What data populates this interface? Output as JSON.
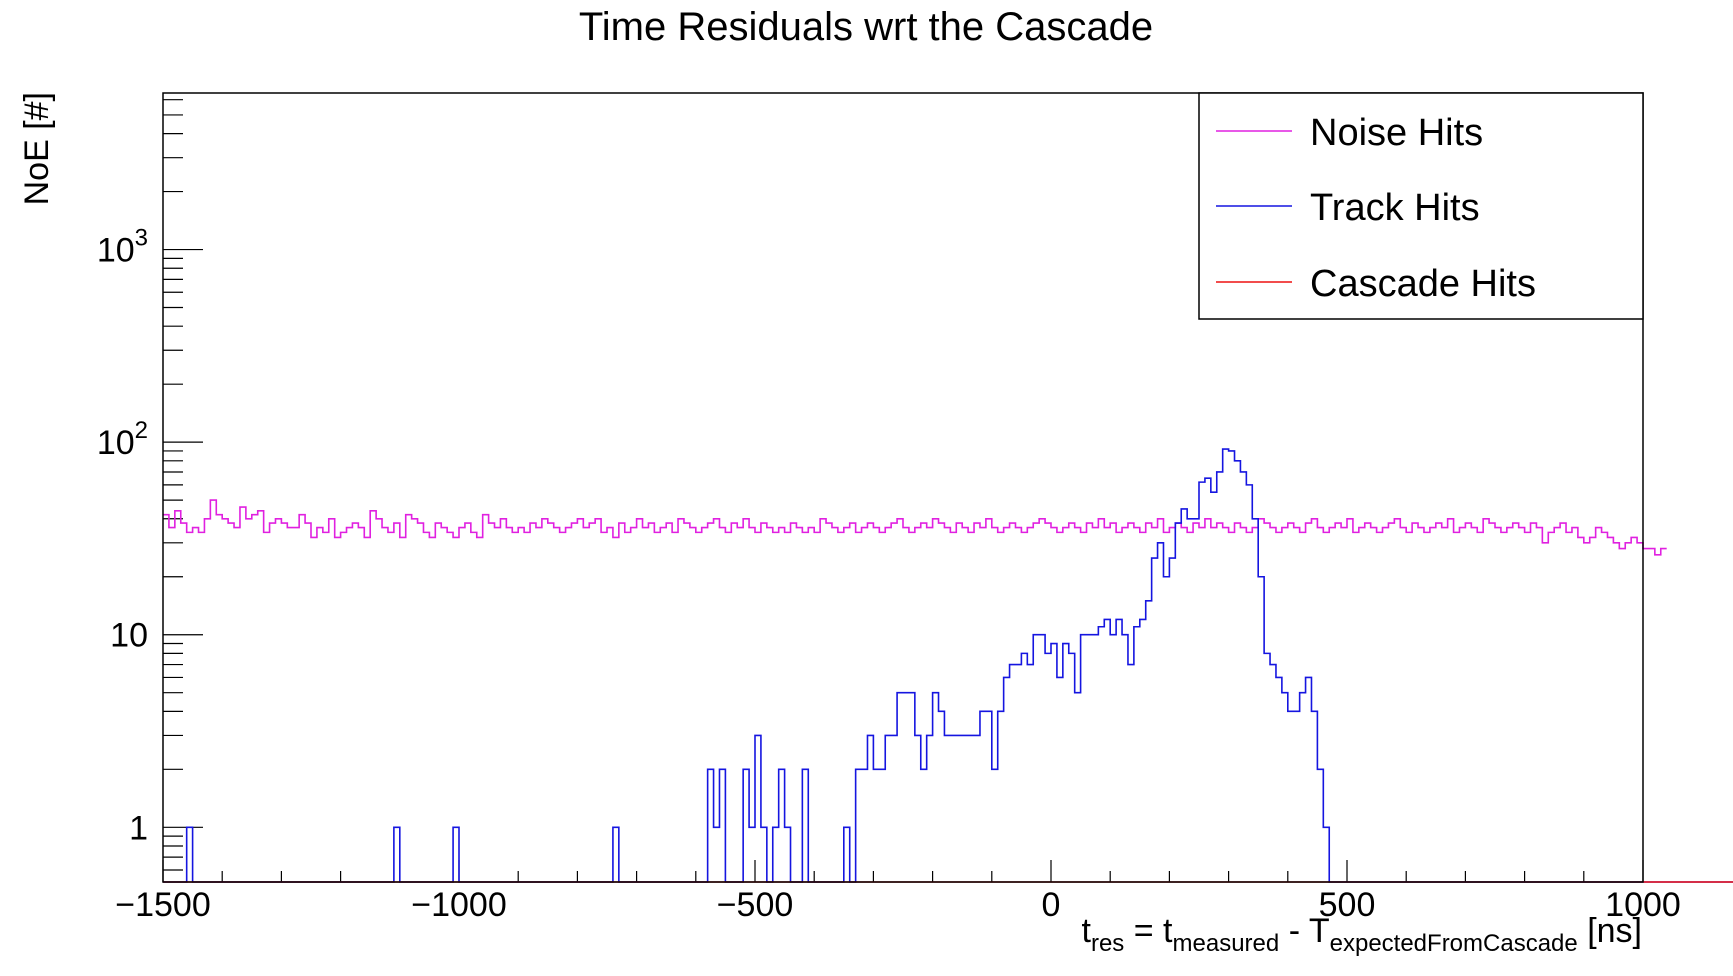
{
  "chart_data": {
    "type": "step-histogram",
    "title": "Time Residuals wrt the Cascade",
    "ylabel": "NoE [#]",
    "xlabel_parts": {
      "t": "t",
      "t_sub": "res",
      "eq": " = t",
      "eq_sub": "measured",
      "minus": " - T",
      "minus_sub": "expectedFromCascade",
      "unit": " [ns]"
    },
    "xlim": [
      -1500,
      1000
    ],
    "ylim": [
      0.52,
      6500
    ],
    "yscale": "log",
    "bin_width": 10,
    "x_ticks": [
      {
        "value": -1500,
        "label": "−1500"
      },
      {
        "value": -1000,
        "label": "−1000"
      },
      {
        "value": -500,
        "label": "−500"
      },
      {
        "value": 0,
        "label": "0"
      },
      {
        "value": 500,
        "label": "500"
      },
      {
        "value": 1000,
        "label": "1000"
      }
    ],
    "y_ticks": [
      {
        "value": 1,
        "base": "1",
        "exp": ""
      },
      {
        "value": 10,
        "base": "10",
        "exp": ""
      },
      {
        "value": 100,
        "base": "10",
        "exp": "2"
      },
      {
        "value": 1000,
        "base": "10",
        "exp": "3"
      }
    ],
    "legend_position": "top-right",
    "series": [
      {
        "name": "Noise Hits",
        "color": "#e020e0",
        "values": [
          42,
          36,
          44,
          38,
          34,
          36,
          34,
          40,
          50,
          42,
          40,
          38,
          36,
          46,
          40,
          42,
          44,
          34,
          38,
          40,
          38,
          36,
          36,
          42,
          38,
          32,
          36,
          34,
          40,
          32,
          34,
          36,
          38,
          36,
          32,
          44,
          40,
          36,
          34,
          38,
          32,
          42,
          40,
          38,
          34,
          32,
          38,
          36,
          34,
          32,
          36,
          38,
          34,
          32,
          42,
          38,
          36,
          40,
          36,
          34,
          36,
          34,
          38,
          36,
          40,
          38,
          36,
          34,
          36,
          38,
          40,
          36,
          38,
          40,
          34,
          36,
          32,
          38,
          34,
          36,
          40,
          36,
          38,
          34,
          36,
          38,
          34,
          40,
          38,
          36,
          34,
          36,
          38,
          40,
          36,
          34,
          38,
          36,
          40,
          36,
          34,
          38,
          36,
          34,
          36,
          34,
          38,
          36,
          34,
          36,
          34,
          40,
          38,
          36,
          34,
          36,
          38,
          34,
          36,
          38,
          36,
          34,
          36,
          38,
          40,
          36,
          34,
          36,
          38,
          36,
          40,
          38,
          36,
          34,
          38,
          36,
          34,
          38,
          36,
          40,
          36,
          34,
          36,
          38,
          36,
          34,
          36,
          38,
          40,
          38,
          36,
          34,
          36,
          38,
          36,
          34,
          38,
          36,
          40,
          36,
          38,
          34,
          36,
          38,
          36,
          34,
          38,
          36,
          40,
          34,
          36,
          38,
          36,
          34,
          38,
          36,
          40,
          36,
          38,
          36,
          34,
          38,
          36,
          34,
          36,
          40,
          38,
          36,
          34,
          36,
          38,
          36,
          34,
          38,
          40,
          36,
          34,
          36,
          38,
          36,
          40,
          34,
          36,
          38,
          36,
          34,
          36,
          38,
          40,
          36,
          34,
          38,
          36,
          34,
          36,
          38,
          36,
          40,
          34,
          36,
          38,
          36,
          34,
          40,
          38,
          36,
          34,
          36,
          38,
          36,
          34,
          38,
          36,
          30,
          34,
          36,
          38,
          34,
          36,
          32,
          30,
          32,
          36,
          34,
          32,
          30,
          28,
          30,
          32,
          30,
          28,
          28,
          26,
          28
        ]
      },
      {
        "name": "Track Hits",
        "color": "#1515e0",
        "values": [
          0,
          0,
          0,
          0,
          1,
          0,
          0,
          0,
          0,
          0,
          0,
          0,
          0,
          0,
          0,
          0,
          0,
          0,
          0,
          0,
          0,
          0,
          0,
          0,
          0,
          0,
          0,
          0,
          0,
          0,
          0,
          0,
          0,
          0,
          0,
          0,
          0,
          0,
          0,
          1,
          0,
          0,
          0,
          0,
          0,
          0,
          0,
          0,
          0,
          1,
          0,
          0,
          0,
          0,
          0,
          0,
          0,
          0,
          0,
          0,
          0,
          0,
          0,
          0,
          0,
          0,
          0,
          0,
          0,
          0,
          0,
          0,
          0,
          0,
          0,
          0,
          1,
          0,
          0,
          0,
          0,
          0,
          0,
          0,
          0,
          0,
          0,
          0,
          0,
          0,
          0,
          0,
          2,
          1,
          2,
          0,
          0,
          0,
          2,
          1,
          3,
          1,
          0,
          1,
          2,
          1,
          0,
          0,
          2,
          0,
          0,
          0,
          0,
          0,
          0,
          1,
          0,
          2,
          2,
          3,
          2,
          2,
          3,
          3,
          5,
          5,
          5,
          3,
          2,
          3,
          5,
          4,
          3,
          3,
          3,
          3,
          3,
          3,
          4,
          4,
          2,
          4,
          6,
          7,
          7,
          8,
          7,
          10,
          10,
          8,
          9,
          6,
          9,
          8,
          5,
          10,
          10,
          10,
          11,
          12,
          10,
          12,
          10,
          7,
          11,
          12,
          15,
          25,
          30,
          20,
          25,
          38,
          45,
          40,
          40,
          62,
          65,
          55,
          70,
          92,
          90,
          80,
          70,
          60,
          40,
          20,
          8,
          7,
          6,
          5,
          4,
          4,
          5,
          6,
          4,
          2,
          1,
          0,
          0,
          0,
          0,
          0,
          0,
          0,
          0,
          0,
          0,
          0,
          0,
          0,
          0,
          0,
          0,
          0,
          0,
          0,
          0,
          0,
          0,
          0,
          0,
          0,
          0,
          0,
          0,
          0,
          0,
          0,
          0,
          0,
          0,
          0,
          0,
          0,
          0,
          0,
          0,
          0,
          0,
          0,
          0,
          0,
          0,
          0,
          0,
          0,
          0,
          0,
          0,
          0,
          0,
          0,
          0,
          0,
          0,
          0,
          0,
          0,
          0,
          0,
          0,
          0,
          0,
          0,
          0,
          0,
          0,
          0,
          0,
          0,
          0,
          0,
          0,
          0,
          0,
          0,
          0,
          0,
          0,
          0,
          0,
          0,
          0,
          0
        ]
      },
      {
        "name": "Cascade Hits",
        "color": "#ee1010",
        "values": [
          0,
          0,
          0,
          0,
          0,
          0,
          0,
          0,
          0,
          0,
          0,
          0,
          0,
          0,
          0,
          0,
          0,
          0,
          0,
          0,
          0,
          0,
          0,
          0,
          0,
          0,
          0,
          0,
          0,
          0,
          0,
          0,
          0,
          0,
          0,
          0,
          0,
          0,
          0,
          0,
          0,
          0,
          0,
          0,
          0,
          0,
          0,
          0,
          0,
          0,
          0,
          0,
          0,
          0,
          0,
          0,
          0,
          0,
          0,
          0,
          0,
          0,
          0,
          0,
          0,
          0,
          0,
          0,
          0,
          0,
          0,
          0,
          0,
          0,
          0,
          0,
          0,
          0,
          0,
          0,
          0,
          0,
          0,
          0,
          0,
          0,
          0,
          0,
          0,
          0,
          0,
          0,
          0,
          0,
          0,
          0,
          0,
          0,
          0,
          0,
          0,
          0,
          0,
          0,
          0,
          0,
          0,
          0,
          0,
          0,
          0,
          0,
          0,
          0,
          0,
          0,
          0,
          0,
          0,
          0,
          0,
          0,
          0,
          0,
          0,
          0,
          0,
          0,
          0,
          0,
          0,
          0,
          0,
          0,
          0,
          0,
          0,
          0,
          0,
          0,
          0,
          0,
          0,
          0,
          0,
          0,
          0,
          0,
          0,
          0,
          0,
          0,
          0,
          0,
          0,
          0,
          0,
          0,
          0,
          0,
          0,
          0,
          0,
          0,
          0,
          0,
          0,
          0,
          0,
          0,
          0,
          0,
          0,
          0,
          0,
          0,
          0,
          0,
          0,
          0,
          0,
          0,
          0,
          0,
          0,
          0,
          0,
          0,
          0,
          0,
          0,
          0,
          0,
          0,
          0,
          0,
          0,
          0,
          0,
          0,
          0,
          0,
          0,
          0,
          0,
          0,
          0,
          0,
          0,
          0,
          0,
          0,
          0,
          0,
          0,
          0,
          0,
          0,
          0,
          0,
          0,
          0,
          0,
          0,
          0,
          0,
          0,
          0,
          0,
          0,
          0,
          0,
          0,
          0,
          0,
          0,
          0,
          0,
          0,
          0,
          0,
          0,
          0,
          0,
          0,
          0,
          0,
          0,
          0,
          0,
          0,
          0,
          0,
          0,
          0,
          0,
          0,
          0,
          0,
          0,
          0,
          0,
          0,
          0,
          0,
          0,
          0,
          0,
          0,
          0,
          0,
          0,
          0,
          0,
          0,
          0,
          0,
          0,
          0,
          0,
          0,
          0,
          0,
          0,
          0,
          0,
          0,
          0,
          0,
          0,
          0,
          0,
          0,
          0,
          0,
          0,
          0,
          0,
          0,
          0,
          0,
          0,
          0,
          0,
          0,
          0,
          0,
          0,
          0,
          0,
          0,
          0,
          0,
          0,
          0,
          0,
          0,
          0,
          0,
          0,
          0,
          0,
          0,
          0,
          0,
          0,
          0,
          0,
          0,
          0,
          0,
          0,
          0,
          0
        ]
      }
    ]
  }
}
